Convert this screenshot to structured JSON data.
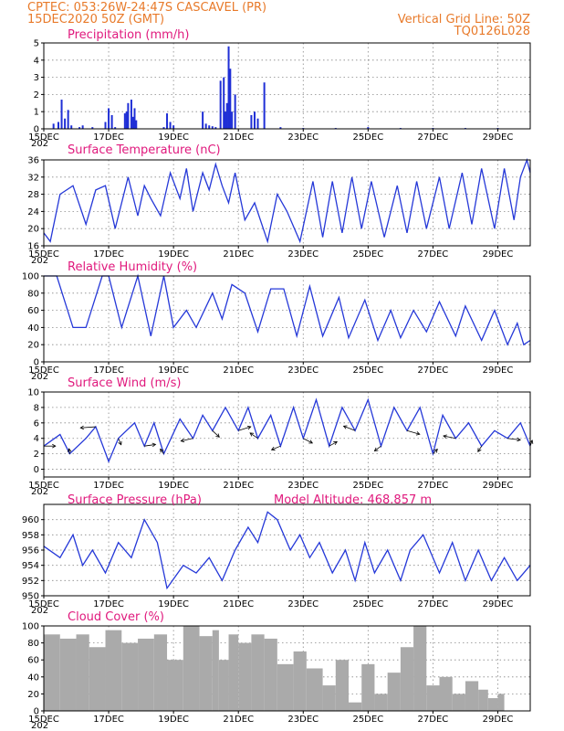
{
  "header": {
    "line1": "CPTEC:  053:26W-24:47S   CASCAVEL (PR)",
    "line2": "15DEC2020 50Z (GMT)",
    "grid_note": "Vertical Grid Line: 50Z",
    "run_id": "TQ0126L028"
  },
  "colors": {
    "header": "#e87a2a",
    "title": "#e0197d",
    "series": "#2538d8",
    "bars": "#1f2fd6",
    "cloud": "#aaaaaa",
    "wind_arrow": "#000000"
  },
  "x_tick_labels": [
    "15DEC",
    "17DEC",
    "19DEC",
    "21DEC",
    "23DEC",
    "25DEC",
    "27DEC",
    "29DEC"
  ],
  "x_tick_sub": "202",
  "chart_data": [
    {
      "type": "bar",
      "title": "Precipitation (mm/h)",
      "xlim": [
        0,
        15
      ],
      "ylim": [
        0,
        5
      ],
      "yticks": [
        0,
        1,
        2,
        3,
        4,
        5
      ],
      "x": [
        0.3,
        0.45,
        0.55,
        0.65,
        0.75,
        0.85,
        1.1,
        1.2,
        1.5,
        1.9,
        2.0,
        2.1,
        2.2,
        2.5,
        2.55,
        2.6,
        2.7,
        2.75,
        2.8,
        2.85,
        3.7,
        3.8,
        3.9,
        4.0,
        4.9,
        5.0,
        5.1,
        5.2,
        5.3,
        5.45,
        5.55,
        5.6,
        5.65,
        5.7,
        5.75,
        5.8,
        5.9,
        6.4,
        6.5,
        6.6,
        6.8,
        7.3,
        8.0,
        9.0,
        10.0,
        11.0,
        12.0,
        13.0,
        14.0
      ],
      "values": [
        0.3,
        0.4,
        1.7,
        0.6,
        1.1,
        0.2,
        0.1,
        0.2,
        0.1,
        0.4,
        1.2,
        0.8,
        0.1,
        0.9,
        1.0,
        1.5,
        1.7,
        0.7,
        1.2,
        0.5,
        0.1,
        0.9,
        0.4,
        0.2,
        1.0,
        0.3,
        0.2,
        0.15,
        0.1,
        2.8,
        3.0,
        1.0,
        1.5,
        4.8,
        3.5,
        1.0,
        2.0,
        0.8,
        1.0,
        0.6,
        2.7,
        0.1,
        0.05,
        0.05,
        0.1,
        0.05,
        0.05,
        0.05,
        0.05
      ]
    },
    {
      "type": "line",
      "title": "Surface Temperature (nC)",
      "xlim": [
        0,
        15
      ],
      "ylim": [
        16,
        36
      ],
      "yticks": [
        16,
        20,
        24,
        28,
        32,
        36
      ],
      "x": [
        0.0,
        0.2,
        0.5,
        0.9,
        1.3,
        1.6,
        1.9,
        2.2,
        2.6,
        2.9,
        3.1,
        3.3,
        3.6,
        3.9,
        4.2,
        4.4,
        4.6,
        4.9,
        5.1,
        5.3,
        5.5,
        5.7,
        5.9,
        6.2,
        6.5,
        6.9,
        7.2,
        7.5,
        7.9,
        8.3,
        8.6,
        8.9,
        9.2,
        9.5,
        9.8,
        10.1,
        10.5,
        10.9,
        11.2,
        11.5,
        11.8,
        12.2,
        12.5,
        12.9,
        13.2,
        13.5,
        13.9,
        14.2,
        14.5,
        14.7,
        14.9,
        15.0
      ],
      "values": [
        19,
        17,
        28,
        30,
        21,
        29,
        30,
        20,
        32,
        23,
        30,
        27,
        23,
        33,
        27,
        34,
        24,
        33,
        29,
        35,
        30,
        26,
        33,
        22,
        26,
        17,
        28,
        24,
        17,
        31,
        18,
        31,
        19,
        32,
        20,
        31,
        18,
        30,
        19,
        31,
        20,
        32,
        20,
        33,
        21,
        34,
        20,
        34,
        22,
        32,
        36,
        33
      ]
    },
    {
      "type": "line",
      "title": "Relative Humidity (%)",
      "xlim": [
        0,
        15
      ],
      "ylim": [
        0,
        100
      ],
      "yticks": [
        0,
        20,
        40,
        60,
        80,
        100
      ],
      "x": [
        0.0,
        0.4,
        0.9,
        1.3,
        1.8,
        2.0,
        2.4,
        2.9,
        3.3,
        3.7,
        4.0,
        4.4,
        4.7,
        5.2,
        5.5,
        5.8,
        6.2,
        6.6,
        7.0,
        7.4,
        7.8,
        8.2,
        8.6,
        9.1,
        9.4,
        9.9,
        10.3,
        10.7,
        11.0,
        11.4,
        11.8,
        12.2,
        12.7,
        13.0,
        13.5,
        13.9,
        14.3,
        14.6,
        14.8,
        15.0
      ],
      "values": [
        100,
        100,
        40,
        40,
        100,
        100,
        40,
        100,
        30,
        100,
        40,
        60,
        40,
        80,
        50,
        90,
        80,
        35,
        85,
        85,
        30,
        88,
        30,
        75,
        28,
        72,
        25,
        60,
        28,
        60,
        35,
        70,
        30,
        65,
        25,
        60,
        20,
        45,
        20,
        25
      ]
    },
    {
      "type": "line",
      "title": "Surface Wind (m/s)",
      "xlim": [
        0,
        15
      ],
      "ylim": [
        -1,
        10
      ],
      "yticks": [
        0,
        2,
        4,
        6,
        8,
        10
      ],
      "x": [
        0.0,
        0.5,
        0.8,
        1.3,
        1.6,
        2.0,
        2.3,
        2.8,
        3.1,
        3.4,
        3.7,
        4.2,
        4.6,
        4.9,
        5.2,
        5.6,
        6.0,
        6.3,
        6.6,
        7.0,
        7.3,
        7.7,
        8.0,
        8.4,
        8.8,
        9.2,
        9.6,
        10.0,
        10.4,
        10.8,
        11.2,
        11.6,
        12.0,
        12.3,
        12.7,
        13.1,
        13.5,
        13.9,
        14.3,
        14.7,
        15.0
      ],
      "values": [
        3,
        4.5,
        2,
        4,
        5.5,
        1,
        4,
        6,
        3,
        6,
        2,
        6.5,
        4,
        7,
        5,
        8,
        5,
        8,
        4,
        7,
        3,
        8,
        4,
        9,
        3,
        8,
        5,
        9,
        3,
        8,
        5,
        8,
        2,
        7,
        4,
        6,
        3,
        5,
        4,
        6,
        3
      ]
    },
    {
      "type": "line",
      "title": "Surface Pressure (hPa)",
      "annotation": "Model Altitude: 468.857  m",
      "xlim": [
        0,
        15
      ],
      "ylim": [
        950,
        962
      ],
      "yticks": [
        950,
        952,
        954,
        956,
        958,
        960
      ],
      "x": [
        0.0,
        0.5,
        0.9,
        1.2,
        1.5,
        1.9,
        2.3,
        2.7,
        3.1,
        3.5,
        3.8,
        4.3,
        4.7,
        5.1,
        5.5,
        5.9,
        6.3,
        6.6,
        6.9,
        7.2,
        7.6,
        7.9,
        8.2,
        8.5,
        8.9,
        9.3,
        9.6,
        9.9,
        10.2,
        10.6,
        11.0,
        11.3,
        11.7,
        12.2,
        12.6,
        13.0,
        13.4,
        13.8,
        14.2,
        14.6,
        15.0
      ],
      "values": [
        956.5,
        955,
        958,
        954,
        956,
        953,
        957,
        955,
        960,
        957,
        951,
        954,
        953,
        955,
        952,
        956,
        959,
        957,
        961,
        960,
        956,
        958,
        955,
        957,
        953,
        956,
        952,
        957,
        953,
        956,
        952,
        956,
        958,
        953,
        957,
        952,
        956,
        952,
        955,
        952,
        954
      ]
    },
    {
      "type": "area",
      "title": "Cloud Cover (%)",
      "xlim": [
        0,
        15
      ],
      "ylim": [
        0,
        100
      ],
      "yticks": [
        0,
        20,
        40,
        60,
        80,
        100
      ],
      "x": [
        0.0,
        0.5,
        1.0,
        1.4,
        1.9,
        2.4,
        2.9,
        3.4,
        3.8,
        4.3,
        4.8,
        5.2,
        5.4,
        5.7,
        6.0,
        6.4,
        6.8,
        7.2,
        7.7,
        8.1,
        8.6,
        9.0,
        9.4,
        9.8,
        10.2,
        10.6,
        11.0,
        11.4,
        11.8,
        12.2,
        12.6,
        13.0,
        13.4,
        13.7,
        14.0,
        14.2
      ],
      "values": [
        90,
        85,
        90,
        75,
        95,
        80,
        85,
        90,
        60,
        100,
        88,
        95,
        60,
        90,
        80,
        90,
        85,
        55,
        70,
        50,
        30,
        60,
        10,
        55,
        20,
        45,
        75,
        100,
        30,
        40,
        20,
        35,
        25,
        15,
        20,
        0
      ]
    }
  ]
}
